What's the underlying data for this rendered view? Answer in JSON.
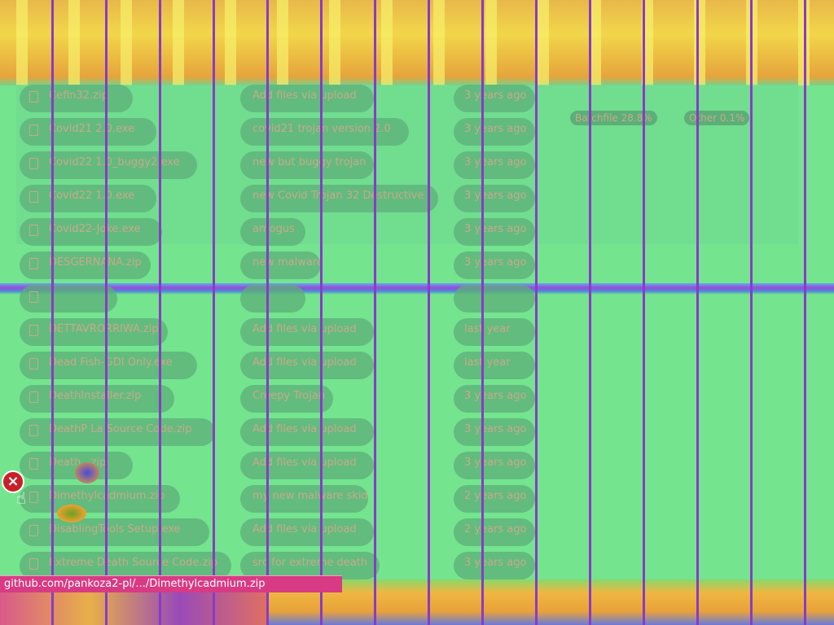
{
  "files": [
    {
      "name": "Cefin32.zip",
      "message": "Add files via upload",
      "age": "3 years ago"
    },
    {
      "name": "Covid21 2.0.exe",
      "message": "covid21 trojan version 2.0",
      "age": "3 years ago"
    },
    {
      "name": "Covid22 1.0_buggy2.exe",
      "message": "new but buggy trojan",
      "age": "3 years ago"
    },
    {
      "name": "Covid22 1.0.exe",
      "message": "new Covid Trojan 32 Destructive",
      "age": "3 years ago"
    },
    {
      "name": "Covid22-Joke.exe",
      "message": "amogus",
      "age": "3 years ago"
    },
    {
      "name": "DESGERNANA.zip",
      "message": "new malware",
      "age": "3 years ago"
    },
    {
      "name": "",
      "message": "",
      "age": ""
    },
    {
      "name": "DETTAVRORRIWA.zip",
      "message": "Add files via upload",
      "age": "last year"
    },
    {
      "name": "Dead Fish-GDI Only.exe",
      "message": "Add files via upload",
      "age": "last year"
    },
    {
      "name": "DeathInstaller.zip",
      "message": "Creepy Trojan",
      "age": "3 years ago"
    },
    {
      "name": "DeathP La Source Code.zip",
      "message": "Add files via upload",
      "age": "3 years ago"
    },
    {
      "name": "Death...zip",
      "message": "Add files via upload",
      "age": "3 years ago"
    },
    {
      "name": "Dimethylcadmium.zip",
      "message": "my new malware skid",
      "age": "2 years ago"
    },
    {
      "name": "DisablingTools Setup.exe",
      "message": "Add files via upload",
      "age": "2 years ago"
    },
    {
      "name": "Extreme Death Source Code.zip",
      "message": "src for extreme death",
      "age": "3 years ago"
    }
  ],
  "languages": [
    {
      "name": "Batchfile 28.8%"
    },
    {
      "name": "Other 0.1%"
    }
  ],
  "status_bar": {
    "url": "github.com/pankoza2-pl/.../Dimethylcadmium.zip"
  },
  "overlay": {
    "close_icon": "×"
  }
}
